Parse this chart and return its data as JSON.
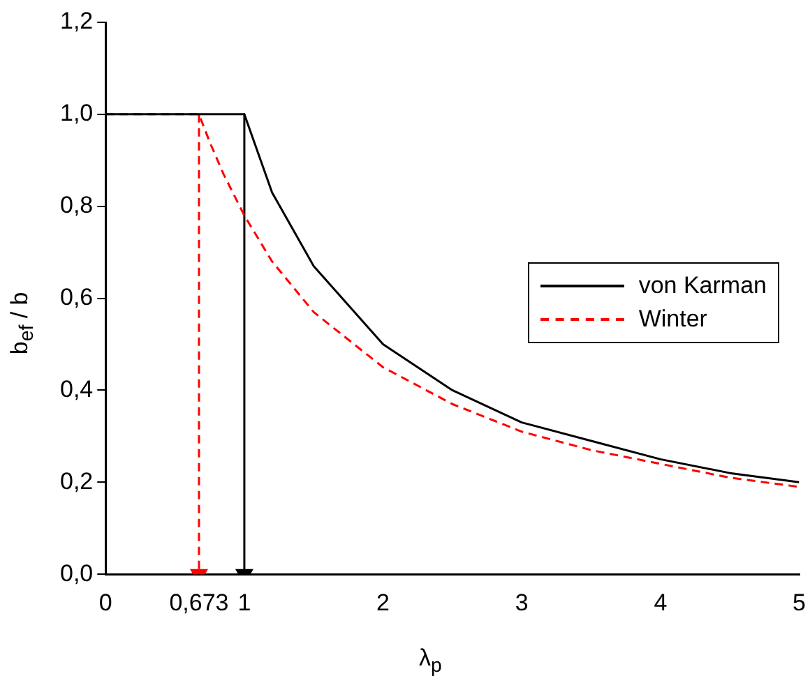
{
  "chart_data": {
    "type": "line",
    "xlabel": "λ$_{p}$",
    "ylabel": "b$_{ef}$ / b",
    "xlim": [
      0,
      5
    ],
    "ylim": [
      0,
      1.2
    ],
    "xticks": [
      0,
      {
        "value": 0.673,
        "label": "0,673"
      },
      1,
      2,
      3,
      4,
      5
    ],
    "yticks": [
      {
        "value": 0,
        "label": "0,0"
      },
      {
        "value": 0.2,
        "label": "0,2"
      },
      {
        "value": 0.4,
        "label": "0,4"
      },
      {
        "value": 0.6,
        "label": "0,6"
      },
      {
        "value": 0.8,
        "label": "0,8"
      },
      {
        "value": 1,
        "label": "1,0"
      },
      {
        "value": 1.2,
        "label": "1,2"
      }
    ],
    "grid": false,
    "legend": "right",
    "marker": "none",
    "series": [
      {
        "name": "von Karman",
        "color": "#000000",
        "line_style": "solid",
        "x": [
          0,
          1,
          1.2,
          1.5,
          2,
          2.5,
          3,
          3.5,
          4,
          4.5,
          5
        ],
        "values": [
          1,
          1,
          0.83,
          0.67,
          0.5,
          0.4,
          0.33,
          0.29,
          0.25,
          0.22,
          0.2
        ]
      },
      {
        "name": "Winter",
        "color": "#ff0000",
        "line_style": "dashed",
        "x": [
          0,
          0.673,
          0.75,
          0.85,
          1,
          1.2,
          1.5,
          2,
          2.5,
          3,
          3.5,
          4,
          4.5,
          5
        ],
        "values": [
          1,
          1,
          0.94,
          0.87,
          0.78,
          0.68,
          0.57,
          0.45,
          0.37,
          0.31,
          0.27,
          0.24,
          0.21,
          0.19
        ]
      },
      {
        "color": "#ff0000",
        "line_style": "dashed",
        "marker": "triangle",
        "x": [
          0.673,
          0.673
        ],
        "values": [
          1,
          0
        ]
      },
      {
        "color": "#000000",
        "line_style": "solid",
        "marker": "triangle",
        "x": [
          1,
          1
        ],
        "values": [
          1,
          0
        ]
      }
    ]
  }
}
